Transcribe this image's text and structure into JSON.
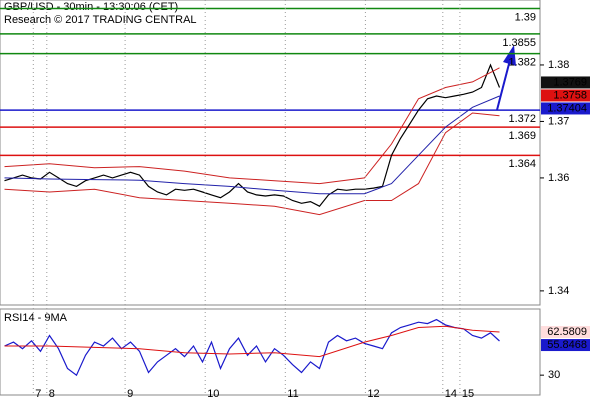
{
  "chart_data": [
    {
      "type": "line",
      "title": "GBP/USD - 30min - 13:30:06 (CET)",
      "subtitle": "Research © 2017 TRADING CENTRAL",
      "xlim": [
        -0.5,
        59.5
      ],
      "ylim": [
        1.3375,
        1.3915
      ],
      "yticks": [
        1.34,
        1.36,
        1.37,
        1.38
      ],
      "series": [
        {
          "color": "#000000",
          "x": [
            0,
            1,
            2,
            3,
            4,
            5,
            6,
            7,
            8,
            9,
            10,
            11,
            12,
            13,
            14,
            15,
            16,
            17,
            18,
            19,
            20,
            21,
            22,
            23,
            24,
            25,
            26,
            27,
            28,
            29,
            30,
            31,
            32,
            33,
            34,
            35,
            36,
            37,
            38,
            39,
            40,
            41,
            42,
            43,
            44,
            45,
            46,
            47,
            48,
            49,
            50,
            51,
            52,
            53,
            54,
            55
          ],
          "values": [
            1.3595,
            1.36,
            1.3605,
            1.36,
            1.3598,
            1.361,
            1.36,
            1.359,
            1.3585,
            1.3595,
            1.36,
            1.3605,
            1.36,
            1.3605,
            1.361,
            1.3605,
            1.3585,
            1.3575,
            1.357,
            1.358,
            1.3578,
            1.358,
            1.3575,
            1.357,
            1.3565,
            1.3575,
            1.359,
            1.3575,
            1.357,
            1.3568,
            1.357,
            1.3568,
            1.356,
            1.3555,
            1.3558,
            1.355,
            1.357,
            1.358,
            1.3578,
            1.358,
            1.358,
            1.3582,
            1.3585,
            1.364,
            1.367,
            1.3695,
            1.372,
            1.374,
            1.3745,
            1.3742,
            1.3745,
            1.3748,
            1.3752,
            1.376,
            1.38,
            1.376
          ]
        },
        {
          "color": "#2222aa",
          "x": [
            0,
            5,
            10,
            15,
            20,
            25,
            30,
            35,
            40,
            43,
            46,
            49,
            52,
            55
          ],
          "values": [
            1.36,
            1.3598,
            1.3597,
            1.3596,
            1.359,
            1.3585,
            1.3578,
            1.3572,
            1.3572,
            1.359,
            1.364,
            1.369,
            1.3725,
            1.3745
          ]
        },
        {
          "color": "#cc2222",
          "x": [
            0,
            5,
            10,
            15,
            20,
            25,
            30,
            35,
            40,
            43,
            46,
            49,
            52,
            55
          ],
          "values": [
            1.362,
            1.3625,
            1.3618,
            1.362,
            1.3612,
            1.36,
            1.3595,
            1.359,
            1.36,
            1.366,
            1.374,
            1.376,
            1.377,
            1.3795
          ]
        },
        {
          "color": "#cc2222",
          "x": [
            0,
            5,
            10,
            15,
            20,
            25,
            30,
            35,
            40,
            43,
            46,
            49,
            52,
            55
          ],
          "values": [
            1.358,
            1.3575,
            1.358,
            1.3565,
            1.356,
            1.3555,
            1.355,
            1.3535,
            1.356,
            1.356,
            1.359,
            1.368,
            1.3715,
            1.371
          ]
        }
      ],
      "levels": [
        {
          "value": 1.39,
          "color": "#118811"
        },
        {
          "value": 1.3855,
          "color": "#118811"
        },
        {
          "value": 1.382,
          "color": "#118811"
        },
        {
          "value": 1.372,
          "color": "#1a1acc"
        },
        {
          "value": 1.369,
          "color": "#dd1111"
        },
        {
          "value": 1.364,
          "color": "#dd1111"
        }
      ],
      "price_tags": [
        {
          "value": 1.3769,
          "color": "#111111"
        },
        {
          "value": 1.3758,
          "color": "#dd1111"
        },
        {
          "value": 1.37404,
          "color": "#1a1acc"
        }
      ]
    },
    {
      "type": "line",
      "title": "RSI14 - 9MA",
      "xlim": [
        -0.5,
        59.5
      ],
      "xticks": [
        {
          "value": 3.2,
          "label": "7"
        },
        {
          "value": 4.7,
          "label": "8"
        },
        {
          "value": 13.4,
          "label": "9"
        },
        {
          "value": 22.3,
          "label": "10"
        },
        {
          "value": 31.2,
          "label": "11"
        },
        {
          "value": 40.1,
          "label": "12"
        },
        {
          "value": 48.7,
          "label": "14"
        },
        {
          "value": 50.6,
          "label": "15"
        }
      ],
      "ylim": [
        15,
        80
      ],
      "yticks": [
        30
      ],
      "series": [
        {
          "color": "#1a1acc",
          "x": [
            0,
            1,
            2,
            3,
            4,
            5,
            6,
            7,
            8,
            9,
            10,
            11,
            12,
            13,
            14,
            15,
            16,
            17,
            18,
            19,
            20,
            21,
            22,
            23,
            24,
            25,
            26,
            27,
            28,
            29,
            30,
            31,
            32,
            33,
            34,
            35,
            36,
            37,
            38,
            39,
            40,
            41,
            42,
            43,
            44,
            45,
            46,
            47,
            48,
            49,
            50,
            51,
            52,
            53,
            54,
            55
          ],
          "values": [
            52,
            55,
            50,
            56,
            48,
            60,
            50,
            35,
            30,
            45,
            55,
            52,
            58,
            50,
            55,
            48,
            32,
            40,
            45,
            50,
            44,
            52,
            40,
            55,
            35,
            50,
            58,
            45,
            52,
            40,
            50,
            45,
            38,
            32,
            40,
            35,
            55,
            60,
            56,
            58,
            54,
            52,
            50,
            62,
            66,
            68,
            70,
            69,
            72,
            68,
            66,
            65,
            60,
            58,
            62,
            55.8468
          ]
        },
        {
          "color": "#dd1111",
          "x": [
            0,
            5,
            10,
            15,
            20,
            25,
            30,
            35,
            40,
            43,
            46,
            49,
            52,
            55
          ],
          "values": [
            52,
            52,
            51,
            50,
            47,
            46,
            47,
            44,
            55,
            60,
            66,
            67,
            64,
            62.5809
          ]
        }
      ]
    }
  ]
}
